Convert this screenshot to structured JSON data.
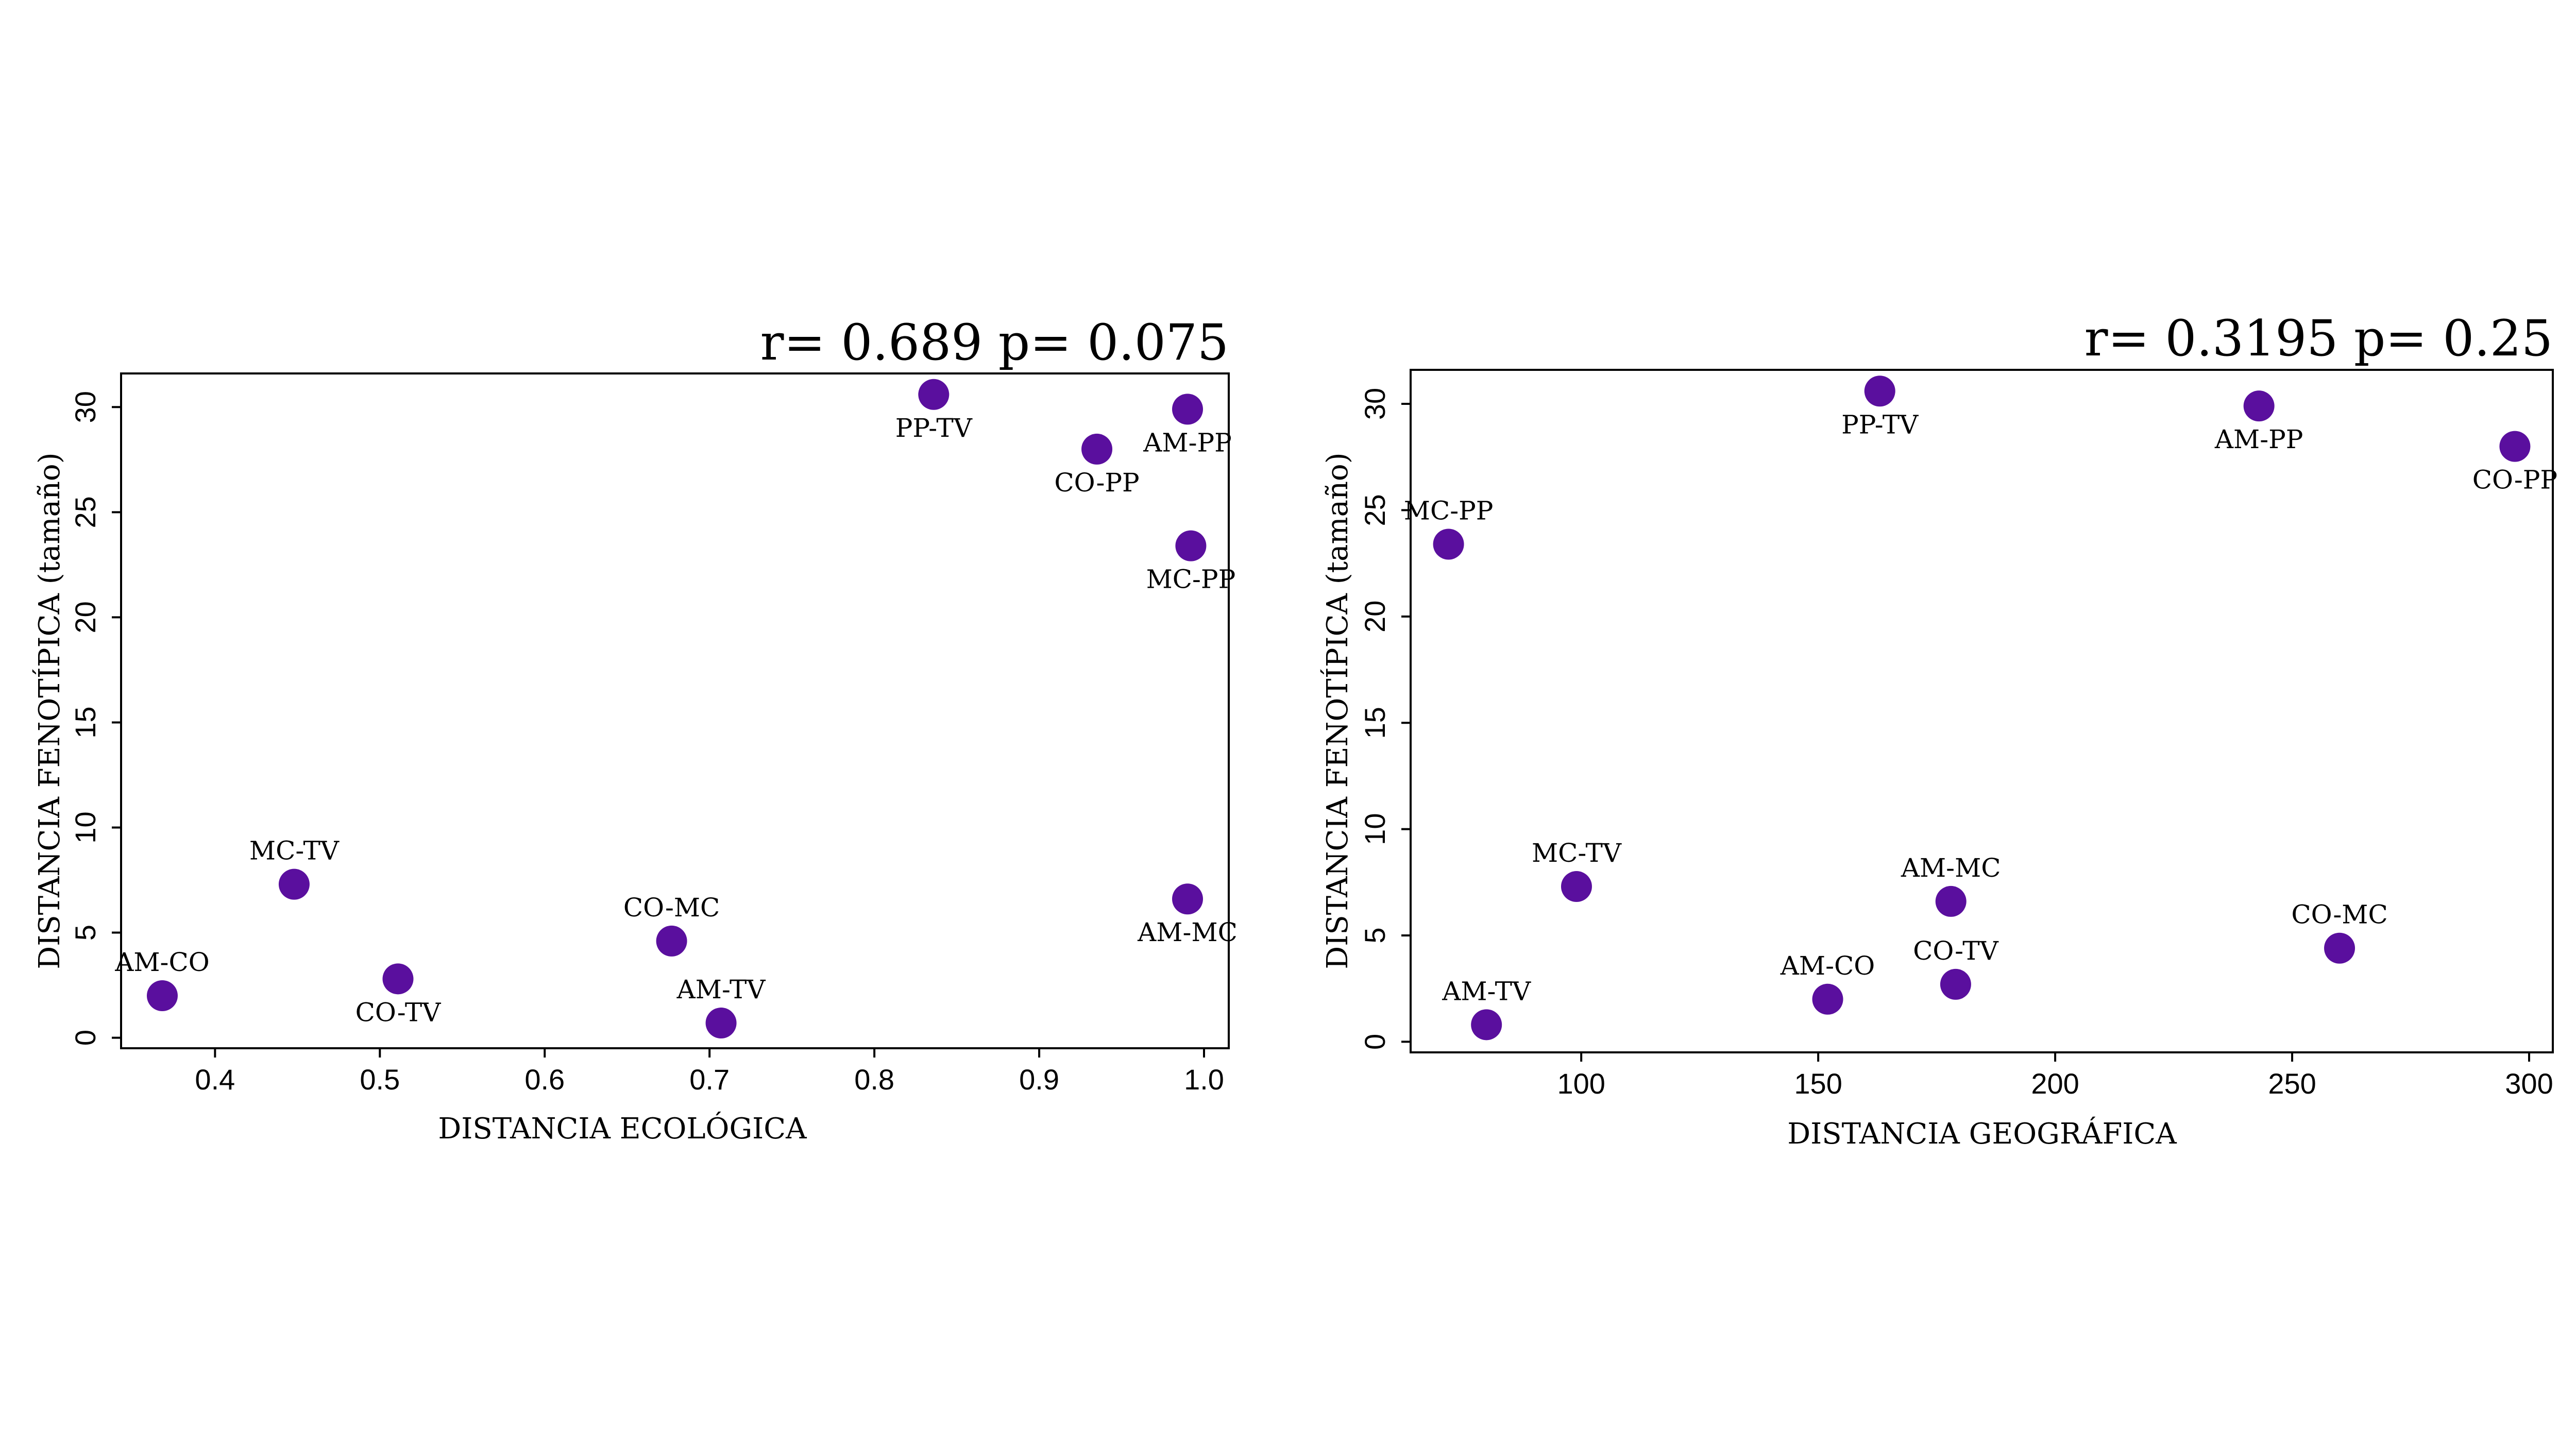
{
  "chart_data": [
    {
      "type": "scatter",
      "title": "r= 0.689 p= 0.075",
      "xlabel": "DISTANCIA ECOLÓGICA",
      "ylabel": "DISTANCIA FENOTÍPICA (tamaño)",
      "xlim": [
        0.343,
        1.015
      ],
      "ylim": [
        -0.5,
        31.6
      ],
      "xticks": [
        0.4,
        0.5,
        0.6,
        0.7,
        0.8,
        0.9,
        1.0
      ],
      "xtick_labels": [
        "0.4",
        "0.5",
        "0.6",
        "0.7",
        "0.8",
        "0.9",
        "1.0"
      ],
      "yticks": [
        0,
        5,
        10,
        15,
        20,
        25,
        30
      ],
      "ytick_labels": [
        "0",
        "5",
        "10",
        "15",
        "20",
        "25",
        "30"
      ],
      "point_color": "#5a0f9e",
      "points": [
        {
          "label": "AM-CO",
          "x": 0.368,
          "y": 2.0,
          "label_pos": "above"
        },
        {
          "label": "MC-TV",
          "x": 0.448,
          "y": 7.3,
          "label_pos": "above"
        },
        {
          "label": "CO-TV",
          "x": 0.511,
          "y": 2.8,
          "label_pos": "below"
        },
        {
          "label": "CO-MC",
          "x": 0.677,
          "y": 4.6,
          "label_pos": "above"
        },
        {
          "label": "AM-TV",
          "x": 0.707,
          "y": 0.7,
          "label_pos": "above"
        },
        {
          "label": "PP-TV",
          "x": 0.836,
          "y": 30.6,
          "label_pos": "below"
        },
        {
          "label": "CO-PP",
          "x": 0.935,
          "y": 28.0,
          "label_pos": "below"
        },
        {
          "label": "AM-PP",
          "x": 0.99,
          "y": 29.9,
          "label_pos": "below"
        },
        {
          "label": "MC-PP",
          "x": 0.992,
          "y": 23.4,
          "label_pos": "below"
        },
        {
          "label": "AM-MC",
          "x": 0.99,
          "y": 6.6,
          "label_pos": "below"
        }
      ]
    },
    {
      "type": "scatter",
      "title": "r= 0.3195 p= 0.25",
      "xlabel": "DISTANCIA GEOGRÁFICA",
      "ylabel": "DISTANCIA FENOTÍPICA (tamaño)",
      "xlim": [
        64,
        305
      ],
      "ylim": [
        -0.5,
        31.6
      ],
      "xticks": [
        100,
        150,
        200,
        250,
        300
      ],
      "xtick_labels": [
        "100",
        "150",
        "200",
        "250",
        "300"
      ],
      "yticks": [
        0,
        5,
        10,
        15,
        20,
        25,
        30
      ],
      "ytick_labels": [
        "0",
        "5",
        "10",
        "15",
        "20",
        "25",
        "30"
      ],
      "point_color": "#5a0f9e",
      "points": [
        {
          "label": "MC-PP",
          "x": 72,
          "y": 23.4,
          "label_pos": "above"
        },
        {
          "label": "AM-TV",
          "x": 80,
          "y": 0.8,
          "label_pos": "above"
        },
        {
          "label": "MC-TV",
          "x": 99,
          "y": 7.3,
          "label_pos": "above"
        },
        {
          "label": "AM-CO",
          "x": 152,
          "y": 2.0,
          "label_pos": "above"
        },
        {
          "label": "PP-TV",
          "x": 163,
          "y": 30.6,
          "label_pos": "below"
        },
        {
          "label": "AM-MC",
          "x": 178,
          "y": 6.6,
          "label_pos": "above"
        },
        {
          "label": "CO-TV",
          "x": 179,
          "y": 2.7,
          "label_pos": "above"
        },
        {
          "label": "AM-PP",
          "x": 243,
          "y": 29.9,
          "label_pos": "below"
        },
        {
          "label": "CO-MC",
          "x": 260,
          "y": 4.4,
          "label_pos": "above"
        },
        {
          "label": "CO-PP",
          "x": 297,
          "y": 28.0,
          "label_pos": "below"
        }
      ]
    }
  ]
}
